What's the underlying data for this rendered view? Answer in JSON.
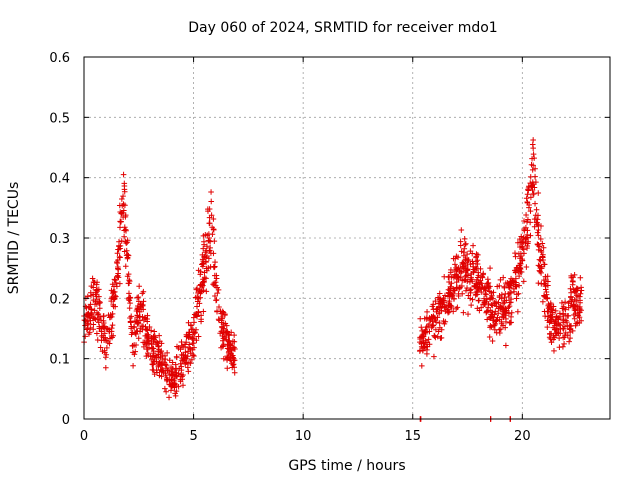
{
  "chart_data": {
    "type": "scatter",
    "title": "Day 060 of 2024, SRMTID for receiver mdo1",
    "xlabel": "GPS time / hours",
    "ylabel": "SRMTID / TECUs",
    "xlim": [
      0,
      24
    ],
    "ylim": [
      0,
      0.6
    ],
    "xticks": [
      0,
      5,
      10,
      15,
      20
    ],
    "yticks": [
      0,
      0.1,
      0.2,
      0.3,
      0.4,
      0.5,
      0.6
    ],
    "grid": true,
    "marker": "+",
    "color": "#e00000",
    "series": [
      {
        "name": "SRMTID",
        "segments": [
          {
            "hours": [
              0.0,
              0.5,
              1.0,
              1.5,
              1.8,
              2.2,
              2.5,
              3.0,
              3.5,
              4.0,
              4.5,
              5.0,
              5.5,
              5.8,
              6.3,
              6.9
            ],
            "srmtid": [
              0.16,
              0.2,
              0.12,
              0.22,
              0.38,
              0.12,
              0.18,
              0.13,
              0.09,
              0.06,
              0.1,
              0.14,
              0.26,
              0.32,
              0.14,
              0.1
            ]
          },
          {
            "hours": [
              15.3,
              15.8,
              16.3,
              16.8,
              17.3,
              17.8,
              18.3,
              18.8,
              19.3,
              19.8,
              20.2,
              20.5,
              20.8,
              21.3,
              21.8,
              22.3,
              22.7
            ],
            "srmtid": [
              0.12,
              0.15,
              0.18,
              0.22,
              0.25,
              0.24,
              0.2,
              0.17,
              0.19,
              0.24,
              0.3,
              0.42,
              0.27,
              0.16,
              0.15,
              0.2,
              0.2
            ]
          }
        ],
        "zero_points_hours": [
          15.35,
          18.55,
          19.45
        ]
      }
    ]
  }
}
